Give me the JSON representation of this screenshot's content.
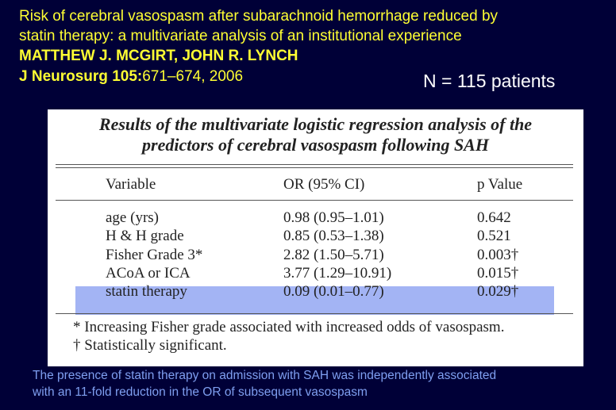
{
  "header": {
    "title_lines": [
      "Risk of cerebral vasospasm after subarachnoid hemorrhage reduced by",
      "statin therapy: a multivariate analysis of an institutional experience"
    ],
    "authors": "MATTHEW J. MCGIRT, JOHN R. LYNCH",
    "journal": "J Neurosurg 105:",
    "pages": "671–674, 2006",
    "sample": "N = 115 patients"
  },
  "table": {
    "caption_lines": [
      "Results of the multivariate logistic regression analysis of the",
      "predictors of cerebral vasospasm following SAH"
    ],
    "columns": [
      "Variable",
      "OR (95% CI)",
      "p Value"
    ],
    "rows": [
      [
        "age (yrs)",
        "0.98 (0.95–1.01)",
        "0.642"
      ],
      [
        "H & H grade",
        "0.85 (0.53–1.38)",
        "0.521"
      ],
      [
        "Fisher Grade 3*",
        "2.82 (1.50–5.71)",
        "0.003†"
      ],
      [
        "ACoA or ICA",
        "3.77 (1.29–10.91)",
        "0.015†"
      ],
      [
        "statin therapy",
        "0.09 (0.01–0.77)",
        "0.029†"
      ]
    ],
    "footnotes": [
      "* Increasing Fisher grade associated with increased odds of vasospasm.",
      "† Statistically significant."
    ]
  },
  "conclusion_lines": [
    "The presence of statin therapy on admission with SAH was independently associated",
    "with an 11-fold reduction in the OR of subsequent vasospasm"
  ]
}
